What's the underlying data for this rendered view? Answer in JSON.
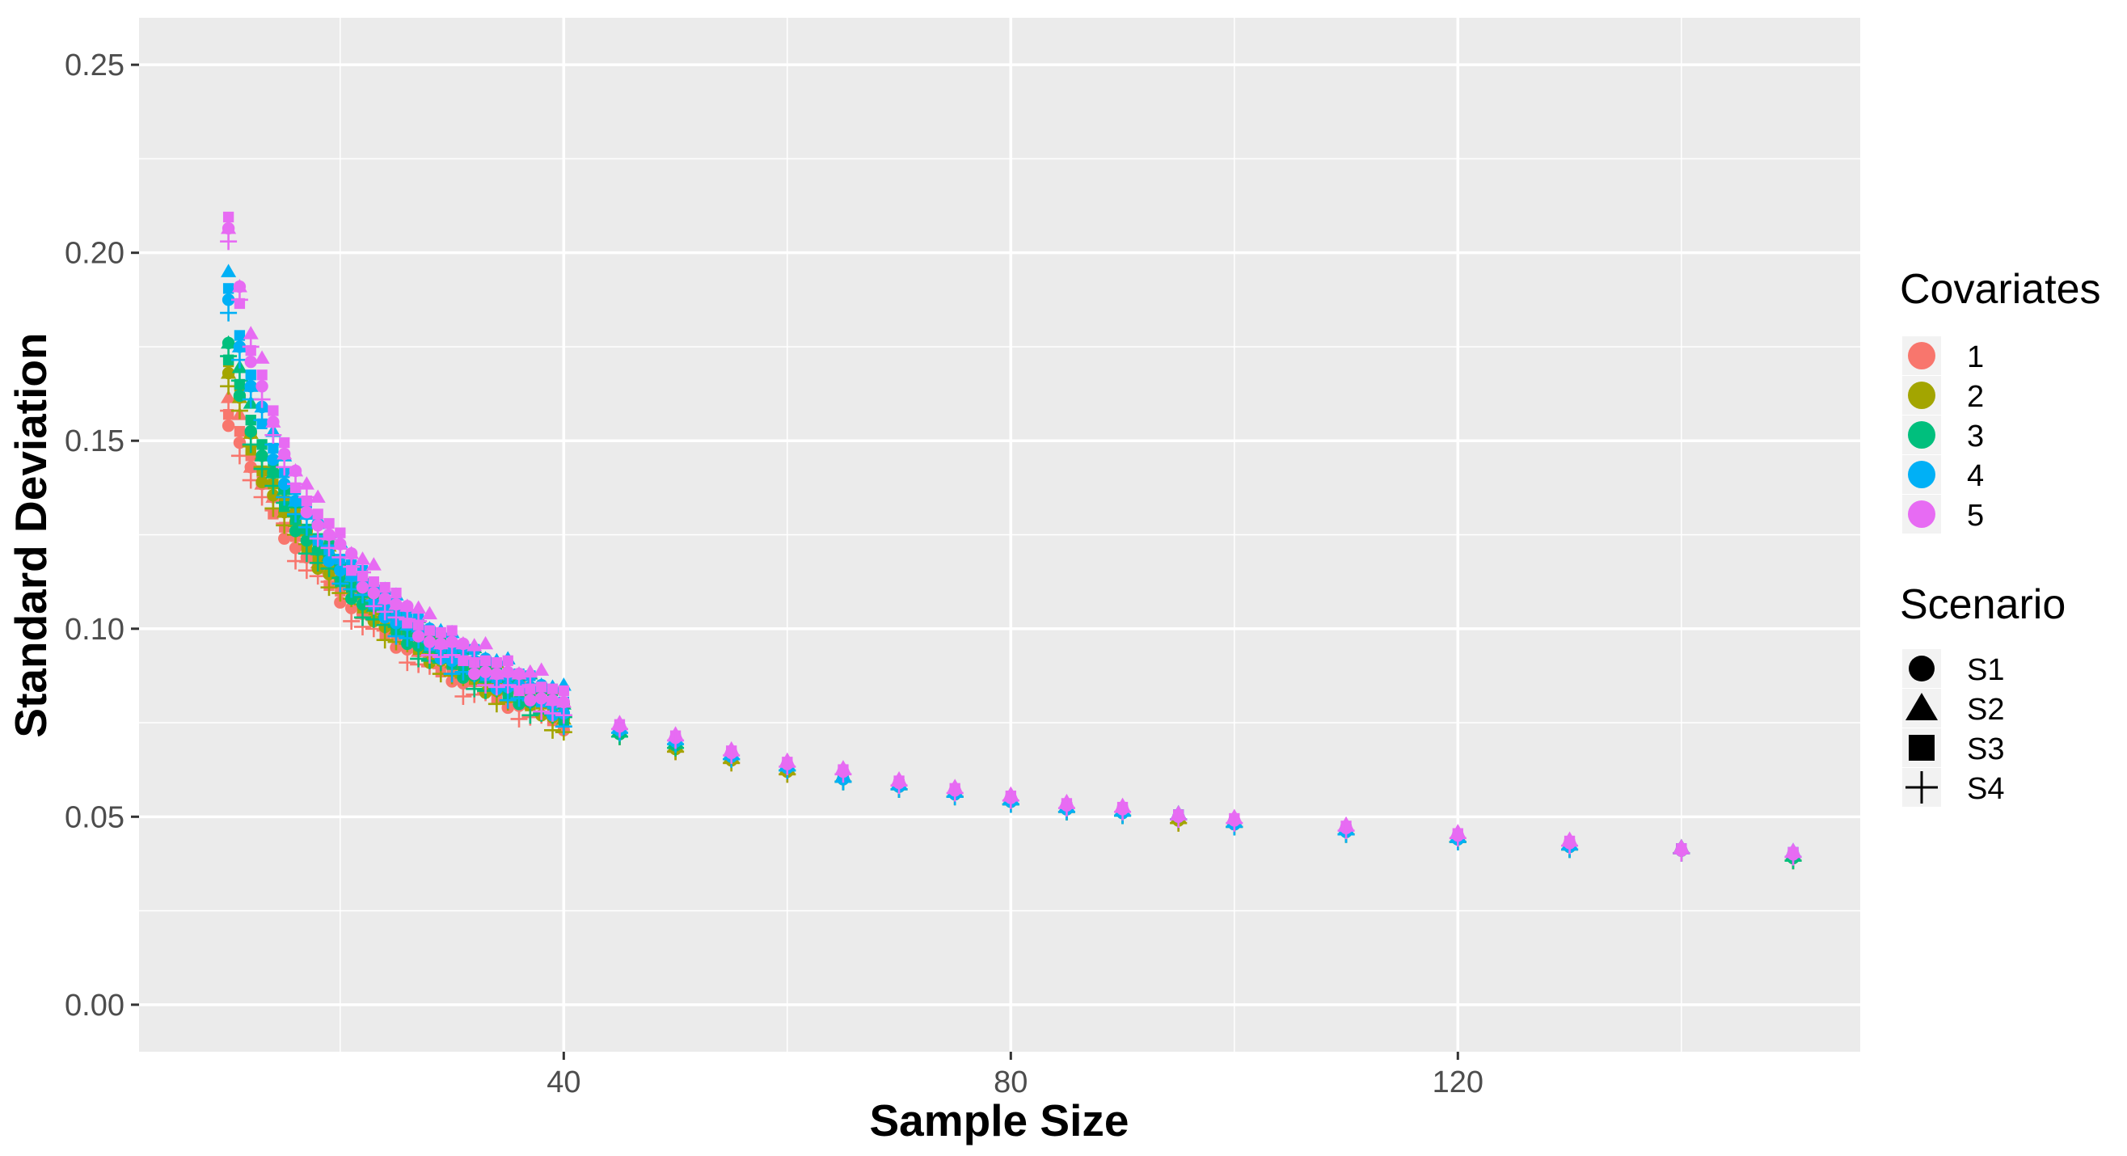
{
  "chart_data": {
    "type": "scatter",
    "title": "",
    "xlabel": "Sample Size",
    "ylabel": "Standard Deviation",
    "xlim": [
      2,
      156
    ],
    "ylim": [
      -0.0125,
      0.2625
    ],
    "x_ticks": [
      40,
      80,
      120
    ],
    "x_tick_labels": [
      "40",
      "80",
      "120"
    ],
    "x_minor_ticks": [
      20,
      60,
      100,
      140
    ],
    "y_ticks": [
      0.0,
      0.05,
      0.1,
      0.15,
      0.2,
      0.25
    ],
    "y_tick_labels": [
      "0.00",
      "0.05",
      "0.10",
      "0.15",
      "0.20",
      "0.25"
    ],
    "y_minor_ticks": [
      0.025,
      0.075,
      0.125,
      0.175,
      0.225
    ],
    "grid": true,
    "panel_background": "#ebebeb",
    "grid_color": "#ffffff",
    "legend_placement": "right",
    "legends": {
      "covariates": {
        "title": "Covariates",
        "entries": [
          {
            "label": "1",
            "color": "#F8766D"
          },
          {
            "label": "2",
            "color": "#A3A500"
          },
          {
            "label": "3",
            "color": "#00BF7D"
          },
          {
            "label": "4",
            "color": "#00B0F6"
          },
          {
            "label": "5",
            "color": "#E76BF3"
          }
        ]
      },
      "scenario": {
        "title": "Scenario",
        "entries": [
          {
            "label": "S1",
            "shape": "circle"
          },
          {
            "label": "S2",
            "shape": "triangle"
          },
          {
            "label": "S3",
            "shape": "square"
          },
          {
            "label": "S4",
            "shape": "plus"
          }
        ]
      }
    },
    "x": [
      10,
      11,
      12,
      13,
      14,
      15,
      16,
      17,
      18,
      19,
      20,
      21,
      22,
      23,
      24,
      25,
      26,
      27,
      28,
      29,
      30,
      31,
      32,
      33,
      34,
      35,
      36,
      37,
      38,
      39,
      40,
      45,
      50,
      55,
      60,
      65,
      70,
      75,
      80,
      85,
      90,
      95,
      100,
      110,
      120,
      130,
      140,
      150
    ],
    "series": [
      {
        "name": "1",
        "values": [
          0.157,
          0.151,
          0.143,
          0.137,
          0.132,
          0.127,
          0.123,
          0.119,
          0.116,
          0.113,
          0.11,
          0.107,
          0.104,
          0.102,
          0.1,
          0.098,
          0.096,
          0.094,
          0.092,
          0.09,
          0.089,
          0.087,
          0.086,
          0.085,
          0.083,
          0.082,
          0.081,
          0.08,
          0.079,
          0.077,
          0.076,
          0.072,
          0.068,
          0.065,
          0.062,
          0.06,
          0.058,
          0.056,
          0.054,
          0.052,
          0.051,
          0.049,
          0.048,
          0.046,
          0.044,
          0.042,
          0.041,
          0.039
        ]
      },
      {
        "name": "2",
        "values": [
          0.168,
          0.16,
          0.149,
          0.142,
          0.137,
          0.131,
          0.127,
          0.123,
          0.119,
          0.116,
          0.113,
          0.11,
          0.107,
          0.105,
          0.102,
          0.1,
          0.098,
          0.096,
          0.094,
          0.093,
          0.091,
          0.089,
          0.088,
          0.086,
          0.085,
          0.084,
          0.083,
          0.081,
          0.08,
          0.078,
          0.076,
          0.072,
          0.068,
          0.065,
          0.062,
          0.06,
          0.058,
          0.056,
          0.054,
          0.052,
          0.051,
          0.049,
          0.048,
          0.046,
          0.044,
          0.042,
          0.041,
          0.039
        ]
      },
      {
        "name": "3",
        "values": [
          0.173,
          0.165,
          0.154,
          0.146,
          0.14,
          0.134,
          0.129,
          0.125,
          0.121,
          0.118,
          0.114,
          0.111,
          0.108,
          0.106,
          0.103,
          0.101,
          0.099,
          0.097,
          0.095,
          0.093,
          0.092,
          0.09,
          0.089,
          0.087,
          0.086,
          0.084,
          0.083,
          0.082,
          0.081,
          0.079,
          0.077,
          0.072,
          0.069,
          0.066,
          0.063,
          0.06,
          0.058,
          0.056,
          0.054,
          0.052,
          0.051,
          0.05,
          0.048,
          0.046,
          0.044,
          0.042,
          0.041,
          0.039
        ]
      },
      {
        "name": "4",
        "values": [
          0.189,
          0.175,
          0.163,
          0.156,
          0.148,
          0.14,
          0.134,
          0.129,
          0.125,
          0.121,
          0.117,
          0.114,
          0.111,
          0.108,
          0.106,
          0.103,
          0.101,
          0.099,
          0.097,
          0.095,
          0.093,
          0.092,
          0.09,
          0.089,
          0.087,
          0.086,
          0.085,
          0.083,
          0.082,
          0.08,
          0.079,
          0.073,
          0.07,
          0.066,
          0.063,
          0.06,
          0.058,
          0.056,
          0.054,
          0.052,
          0.051,
          0.05,
          0.048,
          0.046,
          0.044,
          0.042,
          0.041,
          0.04
        ]
      },
      {
        "name": "5",
        "values": [
          0.205,
          0.188,
          0.174,
          0.166,
          0.155,
          0.145,
          0.139,
          0.134,
          0.129,
          0.125,
          0.121,
          0.117,
          0.114,
          0.111,
          0.108,
          0.105,
          0.103,
          0.101,
          0.098,
          0.096,
          0.095,
          0.093,
          0.091,
          0.09,
          0.088,
          0.087,
          0.085,
          0.084,
          0.083,
          0.081,
          0.079,
          0.074,
          0.071,
          0.067,
          0.064,
          0.062,
          0.059,
          0.057,
          0.055,
          0.053,
          0.052,
          0.05,
          0.049,
          0.047,
          0.045,
          0.043,
          0.041,
          0.04
        ]
      }
    ],
    "scenario_offsets": {
      "S1": 0.0,
      "S2": 0.003,
      "S3": 0.0015,
      "S4": -0.002
    }
  }
}
